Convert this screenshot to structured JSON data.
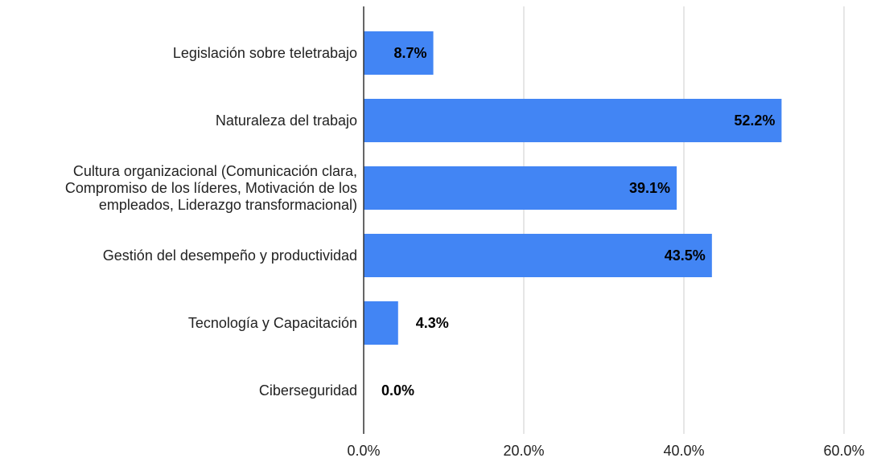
{
  "chart_data": {
    "type": "barh",
    "categories": [
      "Legislación sobre teletrabajo",
      "Naturaleza del trabajo",
      "Cultura organizacional (Comunicación clara, Compromiso de los líderes, Motivación de los empleados, Liderazgo transformacional)",
      "Gestión del desempeño y productividad",
      "Tecnología y Capacitación",
      "Ciberseguridad"
    ],
    "values": [
      8.7,
      52.2,
      39.1,
      43.5,
      4.3,
      0
    ],
    "value_labels": [
      "8.7%",
      "52.2%",
      "39.1%",
      "43.5%",
      "4.3%",
      "0.0%"
    ],
    "color": "#4285f4",
    "xlim": [
      0,
      60
    ],
    "xticks": [
      {
        "value": 0,
        "label": "0.0%"
      },
      {
        "value": 20,
        "label": "20.0%"
      },
      {
        "value": 40,
        "label": "40.0%"
      },
      {
        "value": 60,
        "label": "60.0%"
      }
    ],
    "grid": true
  }
}
